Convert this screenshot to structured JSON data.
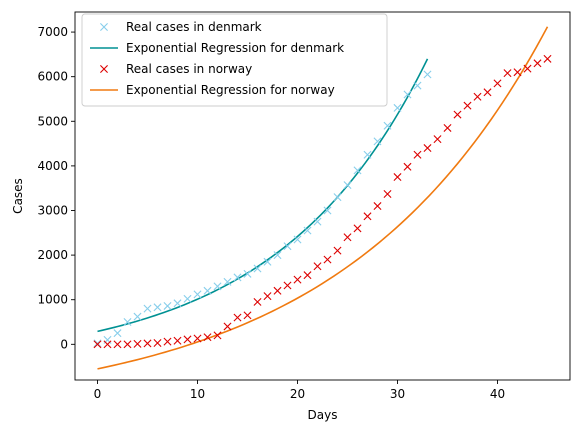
{
  "chart_data": {
    "type": "line",
    "title": "",
    "xlabel": "Days",
    "ylabel": "Cases",
    "xlim": [
      -2.25,
      47.25
    ],
    "ylim": [
      -800,
      7450
    ],
    "xticks": [
      0,
      10,
      20,
      30,
      40
    ],
    "yticks": [
      0,
      1000,
      2000,
      3000,
      4000,
      5000,
      6000,
      7000
    ],
    "grid": false,
    "legend_position": "top-left",
    "series": [
      {
        "name": "Real cases in denmark",
        "kind": "markers",
        "marker": "x",
        "color": "#87ceeb",
        "x": [
          0,
          1,
          2,
          3,
          4,
          5,
          6,
          7,
          8,
          9,
          10,
          11,
          12,
          13,
          14,
          15,
          16,
          17,
          18,
          19,
          20,
          21,
          22,
          23,
          24,
          25,
          26,
          27,
          28,
          29,
          30,
          31,
          32,
          33
        ],
        "y": [
          20,
          100,
          250,
          500,
          620,
          800,
          830,
          860,
          920,
          1020,
          1120,
          1200,
          1300,
          1400,
          1500,
          1580,
          1700,
          1850,
          2000,
          2200,
          2350,
          2550,
          2750,
          3000,
          3300,
          3570,
          3900,
          4250,
          4550,
          4900,
          5300,
          5600,
          5800,
          6050
        ]
      },
      {
        "name": "Exponential Regression for denmark",
        "kind": "curve",
        "color": "#009193",
        "x_range": [
          0,
          33
        ],
        "start": 290,
        "end": 6400
      },
      {
        "name": "Real cases in norway",
        "kind": "markers",
        "marker": "x",
        "color": "#dd0000",
        "x": [
          0,
          1,
          2,
          3,
          4,
          5,
          6,
          7,
          8,
          9,
          10,
          11,
          12,
          13,
          14,
          15,
          16,
          17,
          18,
          19,
          20,
          21,
          22,
          23,
          24,
          25,
          26,
          27,
          28,
          29,
          30,
          31,
          32,
          33,
          34,
          35,
          36,
          37,
          38,
          39,
          40,
          41,
          42,
          43,
          44,
          45
        ],
        "y": [
          0,
          0,
          0,
          0,
          10,
          20,
          30,
          60,
          80,
          110,
          130,
          160,
          200,
          400,
          600,
          650,
          950,
          1080,
          1200,
          1320,
          1450,
          1550,
          1750,
          1900,
          2100,
          2400,
          2600,
          2870,
          3100,
          3370,
          3750,
          3980,
          4250,
          4400,
          4600,
          4850,
          5150,
          5350,
          5550,
          5650,
          5850,
          6080,
          6100,
          6180,
          6300,
          6400
        ]
      },
      {
        "name": "Exponential Regression for norway",
        "kind": "curve",
        "color": "#f07a10",
        "x_range": [
          0,
          45
        ],
        "start": -550,
        "end": 7120
      }
    ]
  }
}
